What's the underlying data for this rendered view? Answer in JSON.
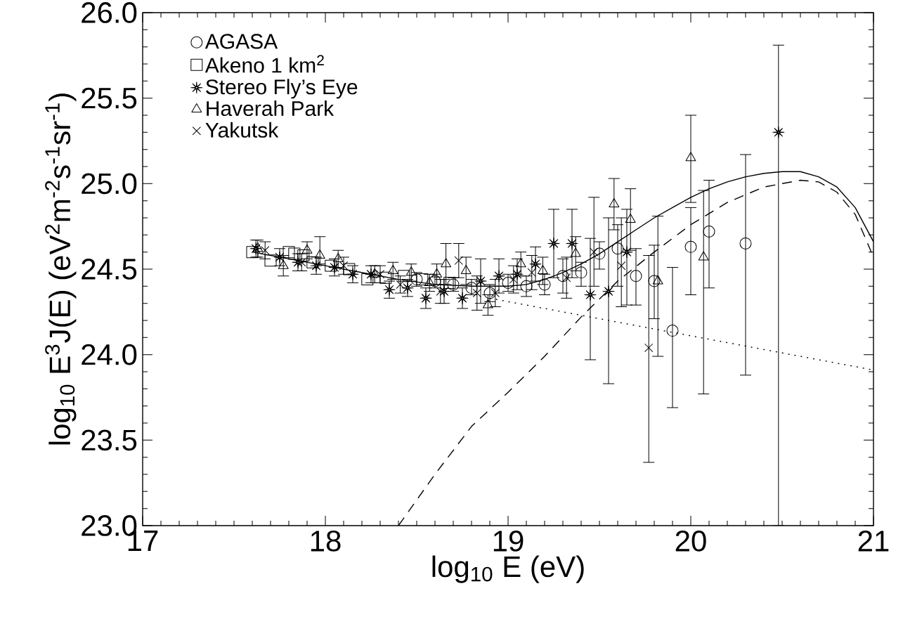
{
  "chart_data": {
    "type": "scatter",
    "xlabel": "log$_{10}$ E (eV)",
    "ylabel": "log$_{10}$ E$^{3}$J(E) (eV$^{2}$m$^{-2}$s$^{-1}$sr$^{-1}$)",
    "xlim": [
      17,
      21
    ],
    "ylim": [
      23,
      26
    ],
    "xticks": [
      17,
      18,
      19,
      20,
      21
    ],
    "yticks": [
      {
        "value": 23,
        "label": "23.0"
      },
      {
        "value": 23.5,
        "label": "23.5"
      },
      {
        "value": 24,
        "label": "24.0"
      },
      {
        "value": 24.5,
        "label": "24.5"
      },
      {
        "value": 25,
        "label": "25.0"
      },
      {
        "value": 25.5,
        "label": "25.5"
      },
      {
        "value": 26,
        "label": "26.0"
      }
    ],
    "legend": "top left",
    "series": [
      {
        "name": "AGASA",
        "marker": "circle",
        "color": "#000000",
        "x": [
          18.5,
          18.6,
          18.7,
          18.8,
          18.9,
          19.0,
          19.1,
          19.2,
          19.3,
          19.4,
          19.5,
          19.6,
          19.7,
          19.8,
          19.9,
          20.0,
          20.1,
          20.3
        ],
        "values": [
          24.44,
          24.43,
          24.41,
          24.39,
          24.36,
          24.42,
          24.4,
          24.41,
          24.46,
          24.48,
          24.59,
          24.62,
          24.46,
          24.43,
          24.14,
          24.63,
          24.72,
          24.65
        ],
        "errors": [
          [
            24.4,
            24.48
          ],
          [
            24.39,
            24.47
          ],
          [
            24.37,
            24.45
          ],
          [
            24.35,
            24.44
          ],
          [
            24.31,
            24.41
          ],
          [
            24.37,
            24.47
          ],
          [
            24.34,
            24.46
          ],
          [
            24.35,
            24.47
          ],
          [
            24.36,
            24.56
          ],
          [
            24.4,
            24.54
          ],
          [
            24.5,
            24.66
          ],
          [
            24.4,
            24.76
          ],
          [
            24.29,
            24.62
          ],
          [
            24.21,
            24.64
          ],
          [
            23.69,
            24.51
          ],
          [
            24.35,
            24.86
          ],
          [
            24.39,
            25.02
          ],
          [
            23.88,
            25.17
          ]
        ]
      },
      {
        "name": "Akeno 1 km$^{2}$",
        "marker": "square",
        "color": "#000000",
        "x": [
          17.6,
          17.7,
          17.8,
          17.83,
          17.88,
          17.93,
          18.03,
          18.13,
          18.23,
          18.33,
          18.43,
          18.53,
          18.68
        ],
        "values": [
          24.6,
          24.55,
          24.6,
          24.59,
          24.58,
          24.54,
          24.52,
          24.5,
          24.44,
          24.45,
          24.46,
          24.44,
          24.42
        ]
      },
      {
        "name": "Stereo Fly’s Eye",
        "marker": "star",
        "color": "#000000",
        "x": [
          17.62,
          17.75,
          17.85,
          17.95,
          18.05,
          18.15,
          18.25,
          18.35,
          18.45,
          18.55,
          18.65,
          18.75,
          18.85,
          18.95,
          19.05,
          19.15,
          19.25,
          19.35,
          19.45,
          19.55,
          19.65,
          20.48
        ],
        "values": [
          24.62,
          24.57,
          24.54,
          24.52,
          24.51,
          24.47,
          24.47,
          24.38,
          24.39,
          24.33,
          24.37,
          24.33,
          24.43,
          24.46,
          24.47,
          24.53,
          24.65,
          24.65,
          24.35,
          24.37,
          24.6,
          25.3
        ],
        "errors": [
          [
            24.57,
            24.67
          ],
          [
            24.52,
            24.62
          ],
          [
            24.49,
            24.59
          ],
          [
            24.47,
            24.57
          ],
          [
            24.46,
            24.56
          ],
          [
            24.42,
            24.52
          ],
          [
            24.42,
            24.52
          ],
          [
            24.33,
            24.43
          ],
          [
            24.34,
            24.44
          ],
          [
            24.27,
            24.39
          ],
          [
            24.3,
            24.44
          ],
          [
            24.27,
            24.39
          ],
          [
            24.3,
            24.56
          ],
          [
            24.36,
            24.56
          ],
          [
            24.38,
            24.56
          ],
          [
            24.43,
            24.63
          ],
          [
            24.45,
            24.85
          ],
          [
            24.45,
            24.85
          ],
          [
            23.97,
            24.68
          ],
          [
            23.83,
            24.8
          ],
          [
            24.29,
            24.85
          ],
          [
            23.0,
            25.81
          ]
        ]
      },
      {
        "name": "Haverah Park",
        "marker": "triangle",
        "color": "#000000",
        "x": [
          17.63,
          17.77,
          17.9,
          17.97,
          18.07,
          18.27,
          18.37,
          18.47,
          18.57,
          18.61,
          18.66,
          18.77,
          18.89,
          19.07,
          19.19,
          19.37,
          19.58,
          19.67,
          19.82,
          20.0,
          20.07
        ],
        "values": [
          24.62,
          24.52,
          24.61,
          24.58,
          24.56,
          24.47,
          24.49,
          24.48,
          24.42,
          24.47,
          24.53,
          24.49,
          24.29,
          24.53,
          24.49,
          24.59,
          24.88,
          24.79,
          24.43,
          25.15,
          24.57
        ],
        "errors": [
          [
            24.57,
            24.67
          ],
          [
            24.46,
            24.58
          ],
          [
            24.56,
            24.66
          ],
          [
            24.53,
            24.69
          ],
          [
            24.51,
            24.61
          ],
          [
            24.42,
            24.52
          ],
          [
            24.44,
            24.54
          ],
          [
            24.43,
            24.53
          ],
          [
            24.37,
            24.47
          ],
          [
            24.41,
            24.53
          ],
          [
            24.41,
            24.65
          ],
          [
            24.41,
            24.57
          ],
          [
            24.23,
            24.35
          ],
          [
            24.46,
            24.6
          ],
          [
            24.41,
            24.57
          ],
          [
            24.49,
            24.69
          ],
          [
            24.73,
            25.03
          ],
          [
            24.61,
            24.97
          ],
          [
            23.99,
            24.81
          ],
          [
            24.89,
            25.4
          ],
          [
            23.77,
            24.96
          ]
        ]
      },
      {
        "name": "Yakutsk",
        "marker": "cross",
        "color": "#000000",
        "x": [
          17.67,
          17.87,
          18.1,
          18.3,
          18.41,
          18.63,
          18.73,
          18.83,
          18.93,
          19.03,
          19.13,
          19.32,
          19.47,
          19.62,
          19.77
        ],
        "values": [
          24.61,
          24.54,
          24.52,
          24.47,
          24.41,
          24.37,
          24.55,
          24.36,
          24.36,
          24.44,
          24.48,
          24.45,
          24.6,
          24.52,
          24.04
        ],
        "errors": [
          [
            24.56,
            24.66
          ],
          [
            24.49,
            24.59
          ],
          [
            24.47,
            24.57
          ],
          [
            24.42,
            24.52
          ],
          [
            24.36,
            24.46
          ],
          [
            24.3,
            24.44
          ],
          [
            24.45,
            24.65
          ],
          [
            24.26,
            24.46
          ],
          [
            24.28,
            24.44
          ],
          [
            24.36,
            24.52
          ],
          [
            24.38,
            24.58
          ],
          [
            24.33,
            24.57
          ],
          [
            24.4,
            24.92
          ],
          [
            24.28,
            24.8
          ],
          [
            23.37,
            24.58
          ]
        ]
      },
      {
        "type": "line",
        "marker": "none",
        "line_style": "solid",
        "color": "#000000",
        "x": [
          17.6,
          17.8,
          18.0,
          18.2,
          18.4,
          18.6,
          18.8,
          19.0,
          19.1,
          19.2,
          19.3,
          19.4,
          19.5,
          19.6,
          19.7,
          19.8,
          19.9,
          20.0,
          20.1,
          20.2,
          20.3,
          20.4,
          20.5,
          20.6,
          20.7,
          20.8,
          20.9,
          21.0
        ],
        "values": [
          24.6,
          24.56,
          24.52,
          24.48,
          24.44,
          24.41,
          24.4,
          24.4,
          24.41,
          24.44,
          24.48,
          24.53,
          24.59,
          24.66,
          24.73,
          24.8,
          24.86,
          24.92,
          24.97,
          25.01,
          25.04,
          25.06,
          25.07,
          25.07,
          25.04,
          24.98,
          24.86,
          24.66
        ]
      },
      {
        "type": "line",
        "marker": "none",
        "line_style": "dashed",
        "color": "#000000",
        "x": [
          18.4,
          18.6,
          18.8,
          19.0,
          19.2,
          19.4,
          19.6,
          19.8,
          20.0,
          20.2,
          20.4,
          20.6,
          20.7,
          20.8,
          20.9,
          21.0
        ],
        "values": [
          23.0,
          23.3,
          23.58,
          23.78,
          23.99,
          24.22,
          24.43,
          24.6,
          24.76,
          24.89,
          24.98,
          25.02,
          25.01,
          24.95,
          24.82,
          24.57
        ]
      },
      {
        "type": "line",
        "marker": "none",
        "line_style": "dotted",
        "color": "#000000",
        "x": [
          18.9,
          19.2,
          19.5,
          20.0,
          20.5,
          21.0
        ],
        "values": [
          24.33,
          24.27,
          24.21,
          24.11,
          24.01,
          23.91
        ]
      }
    ]
  }
}
